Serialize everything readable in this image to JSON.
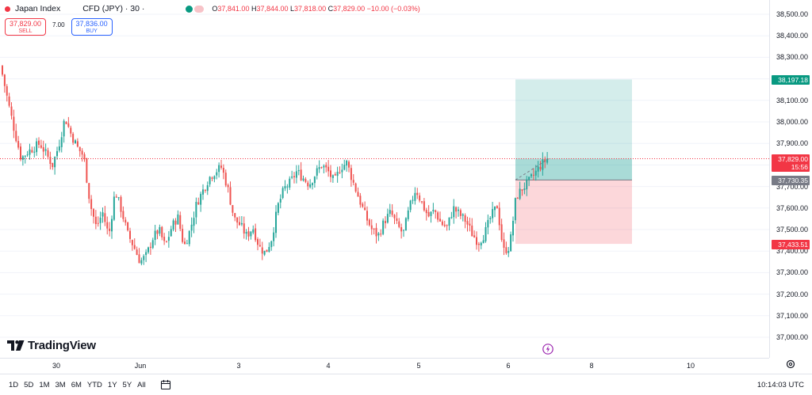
{
  "legend": {
    "symbol": "Japan Index",
    "descriptor": "CFD (JPY) · 30 ·",
    "ohlc": {
      "o_label": "O",
      "o": "37,841.00",
      "h_label": "H",
      "h": "37,844.00",
      "l_label": "L",
      "l": "37,818.00",
      "c_label": "C",
      "c": "37,829.00",
      "change": "−10.00 (−0.03%)"
    }
  },
  "trade": {
    "sell_price": "37,829.00",
    "sell_label": "SELL",
    "spread": "7.00",
    "buy_price": "37,836.00",
    "buy_label": "BUY"
  },
  "price_axis": {
    "ticks": [
      "38,500.00",
      "38,400.00",
      "38,300.00",
      "38,200.00",
      "38,100.00",
      "38,000.00",
      "37,900.00",
      "37,800.00",
      "37,700.00",
      "37,600.00",
      "37,500.00",
      "37,400.00",
      "37,300.00",
      "37,200.00",
      "37,100.00",
      "37,000.00"
    ],
    "target_tag": "38,197.18",
    "last_price_tag": "37,829.00",
    "countdown": "15:56",
    "entry_tag": "37,730.35",
    "stop_tag": "37,433.51"
  },
  "time_axis": {
    "ticks": [
      "30",
      "Jun",
      "3",
      "4",
      "5",
      "6",
      "8",
      "10"
    ]
  },
  "bottom_bar": {
    "ranges": [
      "1D",
      "5D",
      "1M",
      "3M",
      "6M",
      "YTD",
      "1Y",
      "5Y",
      "All"
    ],
    "clock": "10:14:03 UTC"
  },
  "branding": {
    "logo_text": "TradingView"
  },
  "colors": {
    "up": "#26a69a",
    "down": "#ef5350",
    "sell": "#f23645",
    "buy": "#2962ff",
    "target_zone": "rgba(38,166,154,0.2)",
    "stop_zone": "rgba(242,54,69,0.2)"
  },
  "chart_data": {
    "type": "candlestick",
    "timeframe": "30",
    "y_range": [
      36950,
      38550
    ],
    "last_price": 37829.0,
    "position": {
      "type": "long",
      "entry": 37730.35,
      "target": 38197.18,
      "stop": 37433.51
    },
    "close_path": [
      38220,
      38080,
      37950,
      37830,
      37860,
      37880,
      37900,
      37850,
      37800,
      37890,
      38020,
      37940,
      37880,
      37840,
      37620,
      37510,
      37580,
      37470,
      37680,
      37590,
      37480,
      37420,
      37350,
      37380,
      37460,
      37500,
      37420,
      37510,
      37560,
      37420,
      37500,
      37620,
      37680,
      37740,
      37770,
      37790,
      37690,
      37550,
      37520,
      37470,
      37510,
      37420,
      37390,
      37460,
      37610,
      37690,
      37720,
      37770,
      37740,
      37710,
      37760,
      37800,
      37770,
      37720,
      37790,
      37810,
      37720,
      37640,
      37560,
      37500,
      37470,
      37540,
      37580,
      37520,
      37480,
      37600,
      37690,
      37620,
      37560,
      37590,
      37530,
      37510,
      37600,
      37570,
      37540,
      37480,
      37440,
      37480,
      37560,
      37610,
      37400,
      37420,
      37650,
      37690,
      37720,
      37760,
      37800,
      37829
    ]
  }
}
